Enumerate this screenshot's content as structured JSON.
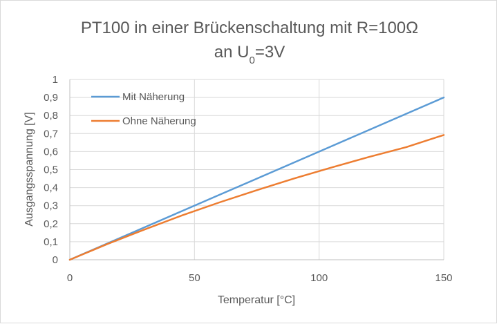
{
  "chart_data": {
    "type": "line",
    "title_line1": "PT100 in einer Brückenschaltung  mit R=100Ω",
    "title_line2_prefix": "an U",
    "title_line2_sub": "0",
    "title_line2_suffix": "=3V",
    "xlabel": "Temperatur [°C]",
    "ylabel": "Ausgangsspannung [V]",
    "xlim": [
      0,
      150
    ],
    "ylim": [
      0,
      1
    ],
    "x_ticks": [
      0,
      50,
      100,
      150
    ],
    "x_tick_labels": [
      "0",
      "50",
      "100",
      "150"
    ],
    "y_ticks": [
      0,
      0.1,
      0.2,
      0.3,
      0.4,
      0.5,
      0.6,
      0.7,
      0.8,
      0.9,
      1
    ],
    "y_tick_labels": [
      "0",
      "0,1",
      "0,2",
      "0,3",
      "0,4",
      "0,5",
      "0,6",
      "0,7",
      "0,8",
      "0,9",
      "1"
    ],
    "grid": "vertical-and-horizontal",
    "legend_position": "top-left",
    "x": [
      0,
      15,
      30,
      45,
      60,
      75,
      90,
      105,
      120,
      135,
      150
    ],
    "series": [
      {
        "name": "Mit Näherung",
        "color": "#5b9bd5",
        "values": [
          0,
          0.09,
          0.18,
          0.27,
          0.36,
          0.45,
          0.54,
          0.63,
          0.72,
          0.81,
          0.9
        ]
      },
      {
        "name": "Ohne Näherung",
        "color": "#ed7d31",
        "values": [
          0,
          0.087,
          0.168,
          0.246,
          0.318,
          0.386,
          0.451,
          0.512,
          0.57,
          0.625,
          0.692
        ]
      }
    ]
  }
}
